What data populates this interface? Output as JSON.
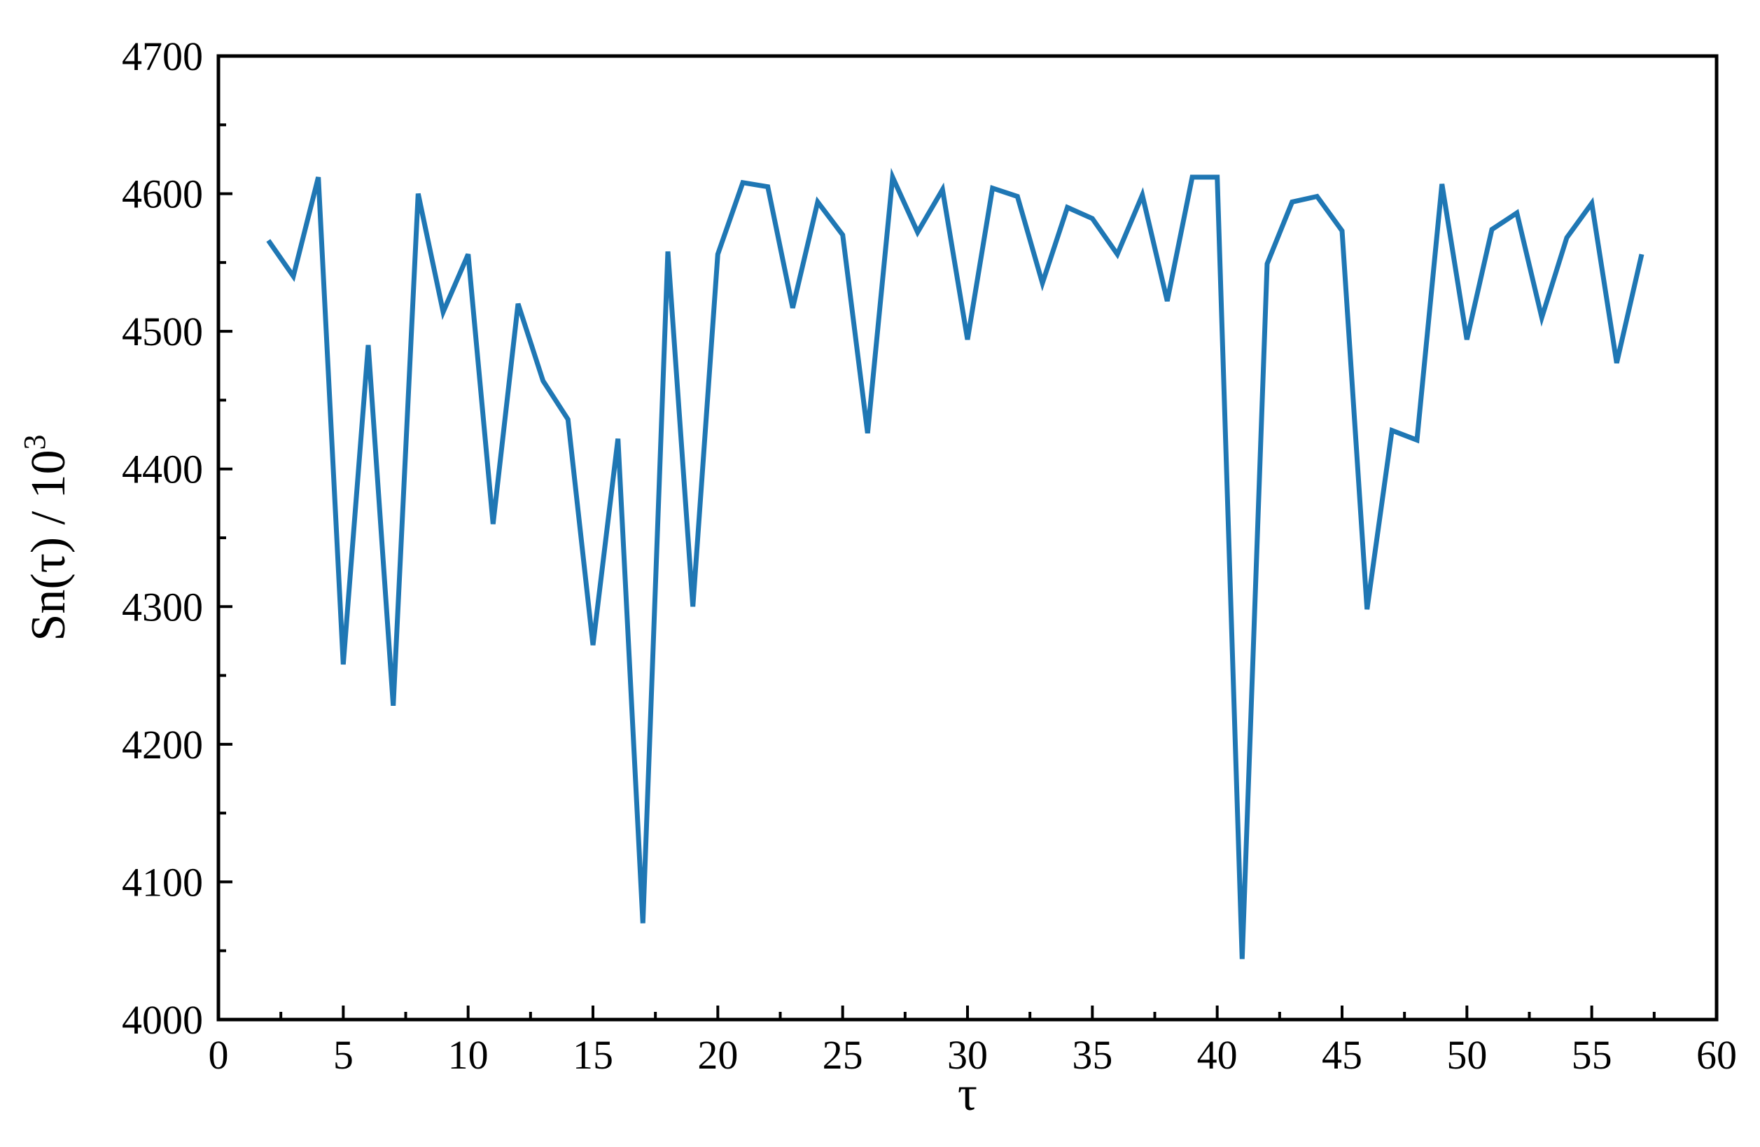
{
  "chart_data": {
    "type": "line",
    "xlabel": "τ",
    "ylabel": "Sn(τ) / 10",
    "ylabel_superscript": "3",
    "xlim": [
      0,
      60
    ],
    "ylim": [
      4000,
      4700
    ],
    "x_ticks": [
      0,
      5,
      10,
      15,
      20,
      25,
      30,
      35,
      40,
      45,
      50,
      55,
      60
    ],
    "y_ticks": [
      4000,
      4100,
      4200,
      4300,
      4400,
      4500,
      4600,
      4700
    ],
    "x_tick_labels": [
      "0",
      "5",
      "10",
      "15",
      "20",
      "25",
      "30",
      "35",
      "40",
      "45",
      "50",
      "55",
      "60"
    ],
    "y_tick_labels": [
      "4000",
      "4100",
      "4200",
      "4300",
      "4400",
      "4500",
      "4600",
      "4700"
    ],
    "grid": false,
    "legend": "none",
    "line_color": "#1f77b4",
    "series": [
      {
        "x": [
          2,
          3,
          4,
          5,
          6,
          7,
          8,
          9,
          10,
          11,
          12,
          13,
          14,
          15,
          16,
          17,
          18,
          19,
          20,
          21,
          22,
          23,
          24,
          25,
          26,
          27,
          28,
          29,
          30,
          31,
          32,
          33,
          34,
          35,
          36,
          37,
          38,
          39,
          40,
          41,
          42,
          43,
          44,
          45,
          46,
          47,
          48,
          49,
          50,
          51,
          52,
          53,
          54,
          55,
          56,
          57
        ],
        "y": [
          4566,
          4540,
          4612,
          4258,
          4490,
          4228,
          4600,
          4514,
          4556,
          4360,
          4520,
          4464,
          4436,
          4272,
          4422,
          4070,
          4558,
          4300,
          4556,
          4608,
          4605,
          4517,
          4594,
          4570,
          4426,
          4612,
          4572,
          4603,
          4494,
          4604,
          4598,
          4535,
          4590,
          4582,
          4556,
          4599,
          4522,
          4612,
          4612,
          4044,
          4549,
          4594,
          4598,
          4573,
          4298,
          4428,
          4421,
          4607,
          4494,
          4574,
          4586,
          4510,
          4568,
          4593,
          4477,
          4556
        ]
      }
    ]
  }
}
